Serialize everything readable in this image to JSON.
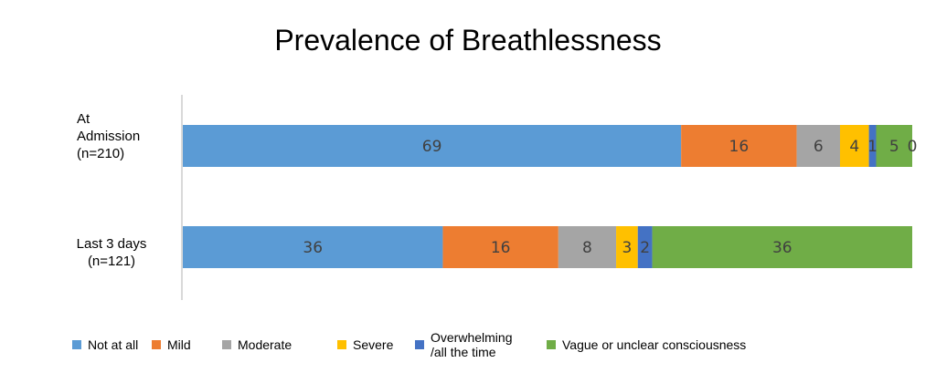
{
  "chart_data": {
    "type": "bar",
    "orientation": "horizontal",
    "stacked": true,
    "title": "Prevalence of Breathlessness",
    "categories": [
      "At\nAdmission\n(n=210)",
      "Last 3 days\n(n=121)"
    ],
    "series": [
      {
        "name": "Not at all",
        "color": "#5b9bd5",
        "values": [
          69,
          36
        ]
      },
      {
        "name": "Mild",
        "color": "#ed7d31",
        "values": [
          16,
          16
        ]
      },
      {
        "name": "Moderate",
        "color": "#a5a5a5",
        "values": [
          6,
          8
        ]
      },
      {
        "name": "Severe",
        "color": "#ffc000",
        "values": [
          4,
          3
        ]
      },
      {
        "name": "Overwhelming\n/all the time",
        "color": "#4472c4",
        "values": [
          1,
          2
        ]
      },
      {
        "name": "Vague or unclear consciousness",
        "color": "#70ad47",
        "values": [
          5,
          36
        ]
      }
    ],
    "extra_labels": [
      {
        "category_index": 0,
        "text": "0"
      }
    ],
    "legend_position": "bottom",
    "grid": false
  }
}
